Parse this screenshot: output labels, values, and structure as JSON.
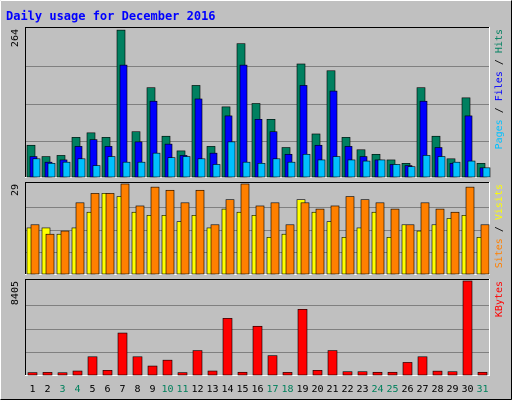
{
  "chart_data": {
    "type": "bar",
    "title": "Daily usage for December 2016",
    "categories": [
      "1",
      "2",
      "3",
      "4",
      "5",
      "6",
      "7",
      "8",
      "9",
      "10",
      "11",
      "12",
      "13",
      "14",
      "15",
      "16",
      "17",
      "18",
      "19",
      "20",
      "21",
      "22",
      "23",
      "24",
      "25",
      "26",
      "27",
      "28",
      "29",
      "30",
      "31"
    ],
    "weekend_days": [
      "3",
      "4",
      "10",
      "11",
      "17",
      "18",
      "24",
      "25",
      "31"
    ],
    "panels": [
      {
        "id": "hits-panel",
        "max_label": "264",
        "ylim": [
          0,
          264
        ],
        "ylabel_parts": [
          {
            "text": "Pages",
            "color": "#00c0ff"
          },
          {
            "text": " / ",
            "color": "#000000"
          },
          {
            "text": "Files",
            "color": "#0000ff"
          },
          {
            "text": " / ",
            "color": "#000000"
          },
          {
            "text": "Hits",
            "color": "#008060"
          }
        ],
        "series": [
          {
            "name": "Hits",
            "color": "#008060",
            "values": [
              58,
              38,
              40,
              72,
              80,
              72,
              262,
              82,
              160,
              74,
              48,
              164,
              56,
              126,
              238,
              132,
              104,
              54,
              202,
              78,
              190,
              72,
              50,
              42,
              32,
              26,
              160,
              74,
              34,
              142,
              26
            ]
          },
          {
            "name": "Files",
            "color": "#0000ff",
            "values": [
              38,
              28,
              32,
              56,
              68,
              56,
              200,
              64,
              136,
              60,
              40,
              140,
              44,
              110,
              200,
              104,
              82,
              42,
              164,
              58,
              154,
              56,
              38,
              32,
              24,
              22,
              136,
              54,
              26,
              110,
              18
            ]
          },
          {
            "name": "Pages",
            "color": "#00c0ff",
            "values": [
              34,
              26,
              28,
              34,
              22,
              38,
              28,
              28,
              44,
              36,
              38,
              34,
              24,
              64,
              28,
              26,
              34,
              28,
              42,
              32,
              38,
              32,
              30,
              32,
              24,
              20,
              40,
              38,
              28,
              30,
              18
            ]
          }
        ]
      },
      {
        "id": "visits-panel",
        "max_label": "29",
        "ylim": [
          0,
          29
        ],
        "ylabel_parts": [
          {
            "text": "Sites",
            "color": "#ff8000"
          },
          {
            "text": " / ",
            "color": "#000000"
          },
          {
            "text": "Visits",
            "color": "#ffff00"
          }
        ],
        "series": [
          {
            "name": "Visits",
            "color": "#ffff00",
            "values": [
              15,
              15,
              13,
              15,
              20,
              26,
              25,
              20,
              19,
              19,
              17,
              19,
              15,
              21,
              20,
              19,
              12,
              13,
              24,
              20,
              17,
              12,
              15,
              20,
              12,
              16,
              14,
              16,
              18,
              19,
              12
            ]
          },
          {
            "name": "Sites",
            "color": "#ff8000",
            "values": [
              16,
              13,
              14,
              23,
              26,
              26,
              29,
              22,
              28,
              27,
              23,
              27,
              16,
              24,
              29,
              22,
              23,
              16,
              23,
              21,
              22,
              25,
              24,
              23,
              21,
              16,
              23,
              21,
              20,
              28,
              16
            ]
          }
        ]
      },
      {
        "id": "kbytes-panel",
        "max_label": "8405",
        "ylim": [
          0,
          8405
        ],
        "ylabel_parts": [
          {
            "text": "KBytes",
            "color": "#ff0000"
          }
        ],
        "series": [
          {
            "name": "KBytes",
            "color": "#ff0000",
            "values": [
              300,
              320,
              290,
              440,
              1700,
              500,
              3800,
              1700,
              880,
              1400,
              300,
              2250,
              440,
              5100,
              330,
              4400,
              1800,
              320,
              5900,
              500,
              2250,
              380,
              380,
              330,
              330,
              1200,
              1700,
              430,
              380,
              8405,
              330
            ]
          }
        ]
      }
    ]
  },
  "colors": {
    "background": "#c0c0c0",
    "title": "#0000ff",
    "weekday_label": "#000000",
    "weekend_label": "#00805c"
  }
}
